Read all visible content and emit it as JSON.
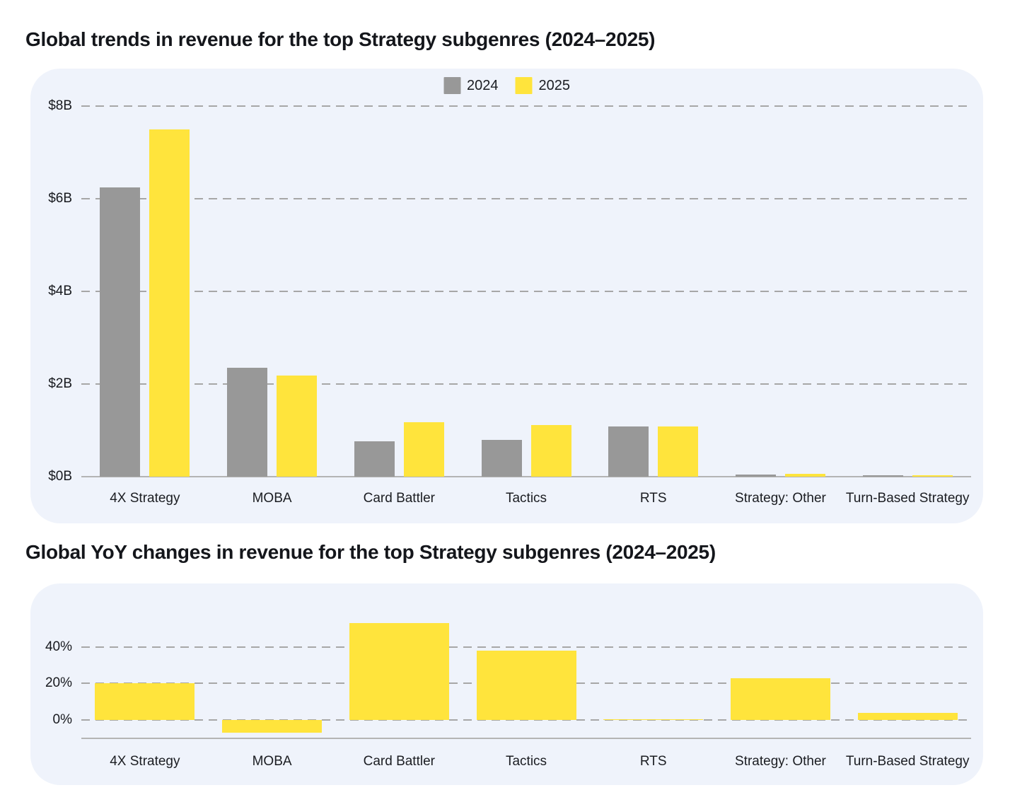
{
  "colors": {
    "panel_background": "#EFF3FB",
    "gridline": "#A7A7A7",
    "axis_line": "#B4B4B4",
    "text": "#1B1D22",
    "series_2024": "#989898",
    "series_2025": "#FFE43C"
  },
  "chart_data": [
    {
      "type": "bar",
      "variant": "grouped",
      "title": "Global trends in revenue for the top Strategy subgenres (2024–2025)",
      "categories": [
        "4X Strategy",
        "MOBA",
        "Card Battler",
        "Tactics",
        "RTS",
        "Strategy: Other",
        "Turn-Based Strategy"
      ],
      "series": [
        {
          "name": "2024",
          "color": "#989898",
          "values": [
            6.25,
            2.35,
            0.77,
            0.8,
            1.08,
            0.05,
            0.025
          ]
        },
        {
          "name": "2025",
          "color": "#FFE43C",
          "values": [
            7.5,
            2.19,
            1.17,
            1.11,
            1.09,
            0.06,
            0.026
          ]
        }
      ],
      "unit": "USD billions",
      "ylim": [
        0,
        8
      ],
      "yticks": [
        {
          "value": 0,
          "label": "$0B"
        },
        {
          "value": 2,
          "label": "$2B"
        },
        {
          "value": 4,
          "label": "$4B"
        },
        {
          "value": 6,
          "label": "$6B"
        },
        {
          "value": 8,
          "label": "$8B"
        }
      ],
      "grid": "dashed-horizontal",
      "legend_position": "top-center"
    },
    {
      "type": "bar",
      "variant": "single",
      "title": "Global YoY changes in revenue for the top Strategy subgenres (2024–2025)",
      "categories": [
        "4X Strategy",
        "MOBA",
        "Card Battler",
        "Tactics",
        "RTS",
        "Strategy: Other",
        "Turn-Based Strategy"
      ],
      "series": [
        {
          "name": "YoY change",
          "color": "#FFE43C",
          "values": [
            20,
            -7,
            53,
            38,
            0.5,
            23,
            4
          ]
        }
      ],
      "unit": "percent",
      "ylim": [
        -10,
        60
      ],
      "yticks": [
        {
          "value": 0,
          "label": "0%"
        },
        {
          "value": 20,
          "label": "20%"
        },
        {
          "value": 40,
          "label": "40%"
        }
      ],
      "grid": "dashed-horizontal",
      "legend_position": "none"
    }
  ]
}
